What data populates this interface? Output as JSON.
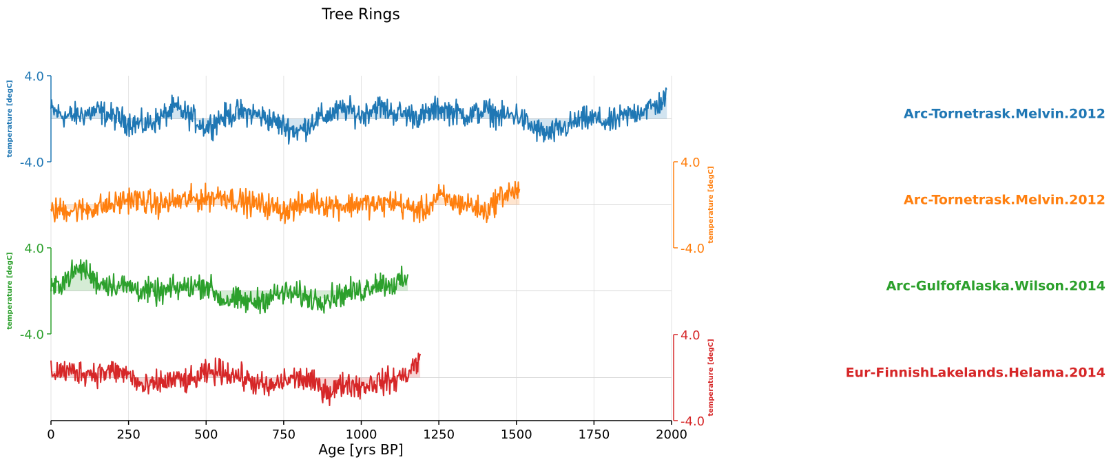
{
  "chart_data": {
    "type": "line",
    "title": "Tree Rings",
    "xlabel": "Age [yrs BP]",
    "xlim": [
      0,
      2000
    ],
    "xticks": [
      0,
      250,
      500,
      750,
      1000,
      1250,
      1500,
      1750,
      2000
    ],
    "grid": true,
    "layout": "stacked panels with alternating y-axis sides",
    "series": [
      {
        "name": "Arc-Tornetrask.Melvin.2012",
        "color": "#1f77b4",
        "ylabel": "temperature [degC]",
        "ylim": [
          -4.0,
          4.0
        ],
        "yticks": [
          "4.0",
          "-4.0"
        ],
        "y_axis_side": "left",
        "x_range": [
          0,
          1985
        ],
        "mean": 0.0,
        "profile_x": [
          0,
          50,
          100,
          150,
          200,
          250,
          300,
          350,
          400,
          450,
          500,
          550,
          600,
          650,
          700,
          750,
          800,
          850,
          900,
          950,
          1000,
          1050,
          1100,
          1150,
          1200,
          1250,
          1300,
          1350,
          1400,
          1450,
          1500,
          1550,
          1600,
          1650,
          1700,
          1750,
          1800,
          1850,
          1900,
          1950,
          1985
        ],
        "profile_y": [
          0.8,
          0.2,
          0.4,
          0.7,
          0.2,
          -0.3,
          -0.6,
          0.0,
          1.0,
          0.2,
          -0.8,
          0.1,
          0.6,
          0.5,
          0.0,
          -0.7,
          -1.2,
          -0.1,
          0.4,
          0.9,
          0.3,
          1.2,
          0.6,
          0.4,
          0.2,
          1.0,
          0.6,
          0.3,
          0.8,
          0.2,
          0.4,
          -0.8,
          -1.5,
          -0.9,
          -0.2,
          0.0,
          -0.4,
          0.2,
          0.8,
          1.2,
          2.0
        ]
      },
      {
        "name": "Arc-Tornetrask.Melvin.2012",
        "color": "#ff7f0e",
        "ylabel": "temperature [degC]",
        "ylim": [
          -4.0,
          4.0
        ],
        "yticks": [
          "4.0",
          "-4.0"
        ],
        "y_axis_side": "right",
        "x_range": [
          0,
          1510
        ],
        "mean": 0.0,
        "profile_x": [
          0,
          50,
          100,
          150,
          200,
          250,
          300,
          350,
          400,
          450,
          500,
          550,
          600,
          650,
          700,
          750,
          800,
          850,
          900,
          950,
          1000,
          1050,
          1100,
          1150,
          1200,
          1250,
          1300,
          1350,
          1400,
          1450,
          1510
        ],
        "profile_y": [
          -0.6,
          -0.4,
          -0.5,
          -0.2,
          0.0,
          0.6,
          0.3,
          0.0,
          0.3,
          0.5,
          0.6,
          0.9,
          0.4,
          0.1,
          -0.1,
          -0.5,
          -0.2,
          0.3,
          0.0,
          -0.1,
          0.2,
          -0.1,
          0.3,
          -0.3,
          -0.6,
          0.8,
          0.2,
          0.0,
          -0.7,
          0.9,
          1.4
        ]
      },
      {
        "name": "Arc-GulfofAlaska.Wilson.2014",
        "color": "#2ca02c",
        "ylabel": "temperature [degC]",
        "ylim": [
          -4.0,
          4.0
        ],
        "yticks": [
          "4.0",
          "-4.0"
        ],
        "y_axis_side": "left",
        "x_range": [
          0,
          1150
        ],
        "mean": 0.0,
        "profile_x": [
          0,
          50,
          100,
          150,
          200,
          250,
          300,
          350,
          400,
          450,
          500,
          550,
          600,
          650,
          700,
          750,
          800,
          850,
          900,
          950,
          1000,
          1050,
          1100,
          1150
        ],
        "profile_y": [
          0.0,
          1.2,
          2.2,
          0.8,
          0.6,
          0.4,
          0.0,
          -0.2,
          0.2,
          0.4,
          0.6,
          -0.8,
          -0.9,
          -1.1,
          -0.6,
          -0.2,
          -0.4,
          -0.8,
          -0.6,
          -0.2,
          0.0,
          0.8,
          0.6,
          1.0
        ]
      },
      {
        "name": "Eur-FinnishLakelands.Helama.2014",
        "color": "#d62728",
        "ylabel": "temperature [degC]",
        "ylim": [
          -4.0,
          4.0
        ],
        "yticks": [
          "4.0",
          "-4.0"
        ],
        "y_axis_side": "right",
        "x_range": [
          0,
          1190
        ],
        "mean": 0.0,
        "profile_x": [
          0,
          50,
          100,
          150,
          200,
          250,
          300,
          350,
          400,
          450,
          500,
          550,
          600,
          650,
          700,
          750,
          800,
          850,
          900,
          950,
          1000,
          1050,
          1100,
          1150,
          1190
        ],
        "profile_y": [
          0.6,
          0.6,
          0.5,
          0.4,
          0.6,
          0.3,
          -1.0,
          -0.5,
          -0.2,
          -0.4,
          0.4,
          0.6,
          0.2,
          -0.4,
          -1.0,
          -0.3,
          0.0,
          -0.6,
          -1.3,
          -0.5,
          -0.8,
          -0.4,
          -0.3,
          0.4,
          1.8
        ]
      }
    ]
  }
}
